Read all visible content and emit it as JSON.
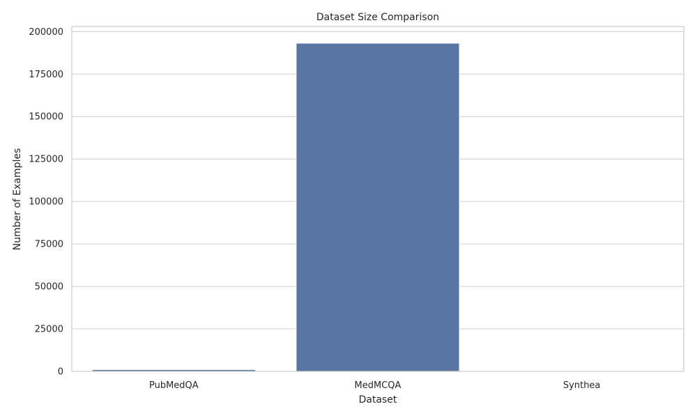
{
  "chart_data": {
    "type": "bar",
    "title": "Dataset Size Comparison",
    "xlabel": "Dataset",
    "ylabel": "Number of Examples",
    "categories": [
      "PubMedQA",
      "MedMCQA",
      "Synthea"
    ],
    "values": [
      1000,
      193155,
      0
    ],
    "ylim": [
      0,
      203000
    ],
    "yticks": [
      0,
      25000,
      50000,
      75000,
      100000,
      125000,
      150000,
      175000,
      200000
    ],
    "ytick_labels": [
      "0",
      "25000",
      "50000",
      "75000",
      "100000",
      "125000",
      "150000",
      "175000",
      "200000"
    ],
    "grid": true,
    "grid_axis": "y",
    "bar_color": "#5875a4",
    "grid_color": "#cccccc"
  }
}
